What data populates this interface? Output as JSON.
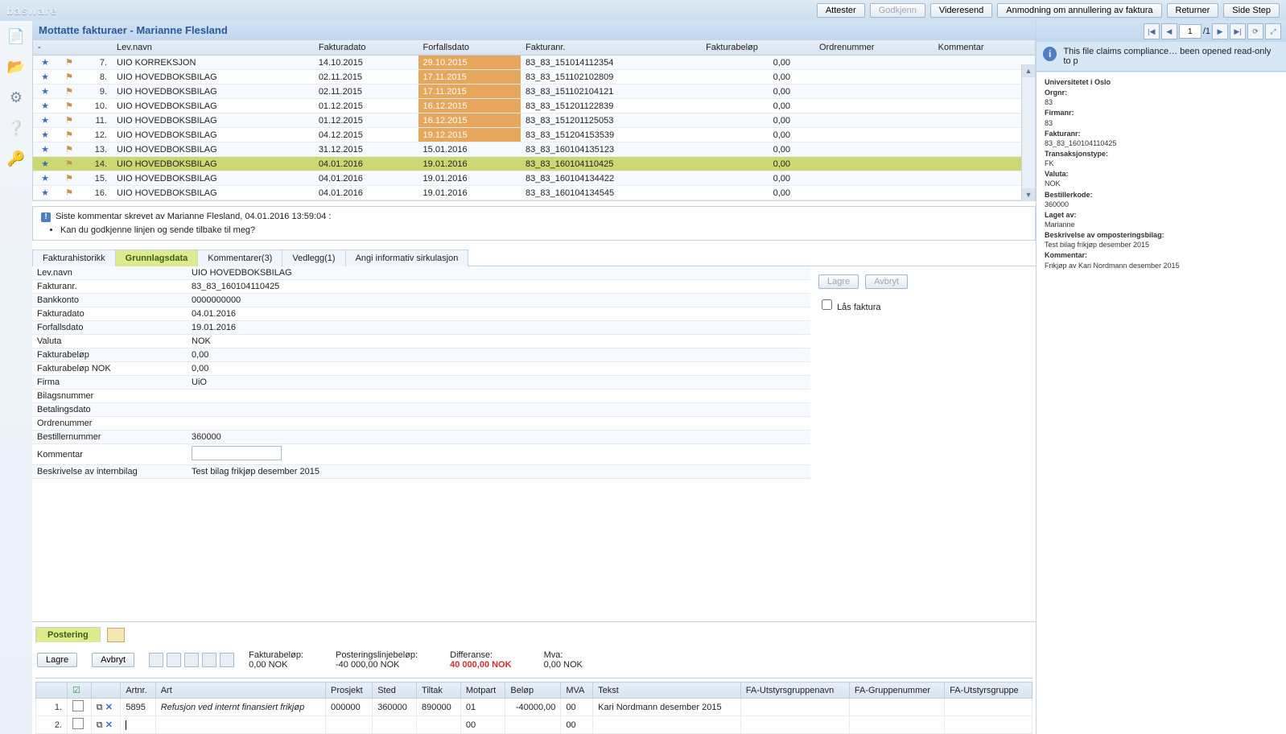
{
  "app": {
    "brand": "basware"
  },
  "topbar": {
    "buttons": [
      {
        "label": "Attester"
      },
      {
        "label": "Godkjenn",
        "disabled": true
      },
      {
        "label": "Videresend"
      },
      {
        "label": "Anmodning om annullering av faktura"
      },
      {
        "label": "Returner"
      },
      {
        "label": "Side Step"
      }
    ]
  },
  "title": "Mottatte fakturaer - Marianne Flesland",
  "invoiceTable": {
    "columns": [
      "",
      "",
      "",
      "Lev.navn",
      "Fakturadato",
      "Forfallsdato",
      "Fakturanr.",
      "Fakturabeløp",
      "Ordrenummer",
      "Kommentar"
    ],
    "rows": [
      {
        "n": "7.",
        "lev": "UIO KORREKSJON",
        "fd": "14.10.2015",
        "ff": "29.10.2015",
        "fnr": "83_83_151014112354",
        "bel": "0,00",
        "warn": true
      },
      {
        "n": "8.",
        "lev": "UIO HOVEDBOKSBILAG",
        "fd": "02.11.2015",
        "ff": "17.11.2015",
        "fnr": "83_83_151102102809",
        "bel": "0,00",
        "warn": true
      },
      {
        "n": "9.",
        "lev": "UIO HOVEDBOKSBILAG",
        "fd": "02.11.2015",
        "ff": "17.11.2015",
        "fnr": "83_83_151102104121",
        "bel": "0,00",
        "warn": true
      },
      {
        "n": "10.",
        "lev": "UIO HOVEDBOKSBILAG",
        "fd": "01.12.2015",
        "ff": "16.12.2015",
        "fnr": "83_83_151201122839",
        "bel": "0,00",
        "warn": true
      },
      {
        "n": "11.",
        "lev": "UIO HOVEDBOKSBILAG",
        "fd": "01.12.2015",
        "ff": "16.12.2015",
        "fnr": "83_83_151201125053",
        "bel": "0,00",
        "warn": true
      },
      {
        "n": "12.",
        "lev": "UIO HOVEDBOKSBILAG",
        "fd": "04.12.2015",
        "ff": "19.12.2015",
        "fnr": "83_83_151204153539",
        "bel": "0,00",
        "warn": true
      },
      {
        "n": "13.",
        "lev": "UIO HOVEDBOKSBILAG",
        "fd": "31.12.2015",
        "ff": "15.01.2016",
        "fnr": "83_83_160104135123",
        "bel": "0,00"
      },
      {
        "n": "14.",
        "lev": "UIO HOVEDBOKSBILAG",
        "fd": "04.01.2016",
        "ff": "19.01.2016",
        "fnr": "83_83_160104110425",
        "bel": "0,00",
        "selected": true
      },
      {
        "n": "15.",
        "lev": "UIO HOVEDBOKSBILAG",
        "fd": "04.01.2016",
        "ff": "19.01.2016",
        "fnr": "83_83_160104134422",
        "bel": "0,00"
      },
      {
        "n": "16.",
        "lev": "UIO HOVEDBOKSBILAG",
        "fd": "04.01.2016",
        "ff": "19.01.2016",
        "fnr": "83_83_160104134545",
        "bel": "0,00"
      }
    ]
  },
  "commentBlock": {
    "who": "Siste kommentar skrevet av Marianne Flesland, 04.01.2016 13:59:04 :",
    "text": "Kan du godkjenne linjen og sende tilbake til meg?"
  },
  "tabs": [
    "Fakturahistorikk",
    "Grunnlagsdata",
    "Kommentarer(3)",
    "Vedlegg(1)",
    "Angi informativ sirkulasjon"
  ],
  "activeTab": 1,
  "details": {
    "rows": [
      {
        "k": "Lev.navn",
        "v": "UIO HOVEDBOKSBILAG"
      },
      {
        "k": "Fakturanr.",
        "v": "83_83_160104110425"
      },
      {
        "k": "Bankkonto",
        "v": "0000000000"
      },
      {
        "k": "Fakturadato",
        "v": "04.01.2016"
      },
      {
        "k": "Forfallsdato",
        "v": "19.01.2016"
      },
      {
        "k": "Valuta",
        "v": "NOK"
      },
      {
        "k": "Fakturabeløp",
        "v": "0,00"
      },
      {
        "k": "Fakturabeløp NOK",
        "v": "0,00"
      },
      {
        "k": "Firma",
        "v": "UiO"
      },
      {
        "k": "Bilagsnummer",
        "v": ""
      },
      {
        "k": "Betalingsdato",
        "v": ""
      },
      {
        "k": "Ordrenummer",
        "v": ""
      },
      {
        "k": "Bestillernummer",
        "v": "360000"
      },
      {
        "k": "Kommentar",
        "v": "",
        "input": true
      },
      {
        "k": "Beskrivelse av internbilag",
        "v": "Test bilag frikjøp desember 2015"
      }
    ],
    "buttons": {
      "save": "Lagre",
      "cancel": "Avbryt"
    },
    "lock": "Lås faktura"
  },
  "postering": {
    "tab": "Postering",
    "save": "Lagre",
    "cancel": "Avbryt",
    "sumLabels": {
      "fakturabelop": "Fakturabeløp:",
      "fakturabelop_v": "0,00 NOK",
      "linjebelop": "Posteringslinjebeløp:",
      "linjebelop_v": "-40 000,00 NOK",
      "diff": "Differanse:",
      "diff_v": "40 000,00 NOK",
      "mva": "Mva:",
      "mva_v": "0,00  NOK"
    },
    "columns": [
      "",
      "",
      "",
      "Artnr.",
      "Art",
      "Prosjekt",
      "Sted",
      "Tiltak",
      "Motpart",
      "Beløp",
      "MVA",
      "Tekst",
      "FA-Utstyrsgruppenavn",
      "FA-Gruppenummer",
      "FA-Utstyrsgruppe"
    ],
    "rows": [
      {
        "n": "1.",
        "art": "5895",
        "arttext": "Refusjon ved internt finansiert frikjøp",
        "prosjekt": "000000",
        "sted": "360000",
        "tiltak": "890000",
        "motpart": "01",
        "belop": "-40000,00",
        "mva": "00",
        "tekst": "Kari Nordmann desember 2015",
        "italic": true
      },
      {
        "n": "2.",
        "art": "",
        "arttext": "",
        "prosjekt": "",
        "sted": "",
        "tiltak": "",
        "motpart": "00",
        "belop": "",
        "mva": "00",
        "tekst": "",
        "cursor": true
      }
    ]
  },
  "pager": {
    "page": "1",
    "pages": "/1"
  },
  "infoBanner": "This file claims compliance… been opened read-only to p",
  "meta": [
    {
      "k": "Universitetet i Oslo",
      "v": ""
    },
    {
      "k": "Orgnr:",
      "v": "83"
    },
    {
      "k": "Firmanr:",
      "v": "83"
    },
    {
      "k": "Fakturanr:",
      "v": "83_83_160104110425"
    },
    {
      "k": "Transaksjonstype:",
      "v": "FK"
    },
    {
      "k": "Valuta:",
      "v": "NOK"
    },
    {
      "k": "Bestillerkode:",
      "v": "360000"
    },
    {
      "k": "Laget av:",
      "v": "Marianne"
    },
    {
      "k": "Beskrivelse av omposteringsbilag:",
      "v": "Test bilag frikjøp desember 2015"
    },
    {
      "k": "Kommentar:",
      "v": "Frikjøp av Kari Nordmann desember 2015"
    }
  ]
}
